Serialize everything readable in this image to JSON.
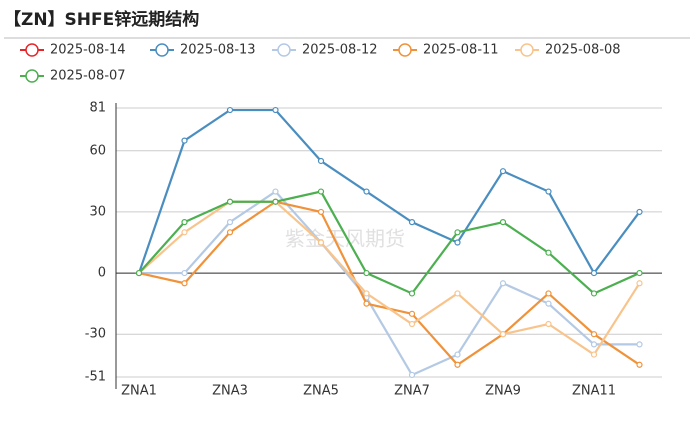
{
  "chart_data": {
    "type": "line",
    "title": "【ZN】SHFE锌远期结构",
    "watermark": "紫金天风期货",
    "categories": [
      "ZNA1",
      null,
      "ZNA3",
      null,
      "ZNA5",
      null,
      "ZNA7",
      null,
      "ZNA9",
      null,
      "ZNA11",
      null
    ],
    "series": [
      {
        "name": "2025-08-14",
        "color": "#e8262a",
        "values": [
          null,
          null,
          null,
          null,
          null,
          null,
          null,
          null,
          null,
          null,
          null,
          null
        ]
      },
      {
        "name": "2025-08-13",
        "color": "#4a8ec0",
        "values": [
          0,
          65,
          80,
          80,
          55,
          40,
          25,
          15,
          50,
          40,
          0,
          30
        ]
      },
      {
        "name": "2025-08-12",
        "color": "#b4c9e4",
        "values": [
          0,
          0,
          25,
          40,
          15,
          -12,
          -50,
          -40,
          -5,
          -15,
          -35,
          -35
        ]
      },
      {
        "name": "2025-08-11",
        "color": "#f0923a",
        "values": [
          0,
          -5,
          20,
          35,
          30,
          -15,
          -20,
          -45,
          -30,
          -10,
          -30,
          -45
        ]
      },
      {
        "name": "2025-08-08",
        "color": "#f8c48c",
        "values": [
          0,
          20,
          35,
          35,
          15,
          -10,
          -25,
          -10,
          -30,
          -25,
          -40,
          -5
        ]
      },
      {
        "name": "2025-08-07",
        "color": "#4caf50",
        "values": [
          0,
          25,
          35,
          35,
          40,
          0,
          -10,
          20,
          25,
          10,
          -10,
          0
        ]
      }
    ],
    "ylim": [
      -51,
      81
    ],
    "yticks": [
      -51,
      -30,
      0,
      30,
      60,
      81
    ],
    "grid": true
  }
}
